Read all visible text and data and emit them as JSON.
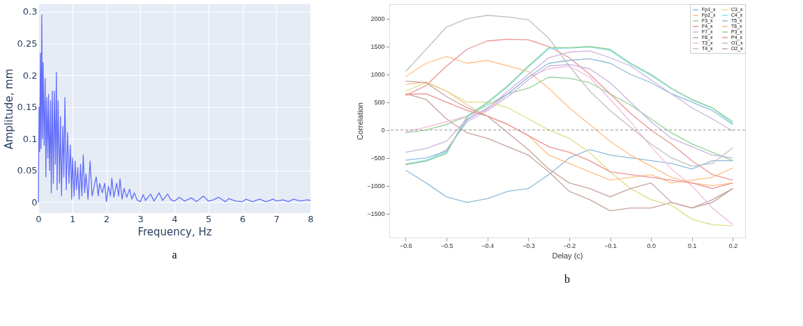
{
  "chart_data": [
    {
      "type": "line",
      "xlabel": "Frequency, Hz",
      "ylabel": "Amplitude, mm",
      "annotations": [
        "a"
      ],
      "grid": true,
      "xlim": [
        0,
        8
      ],
      "ylim": [
        -0.017,
        0.312
      ],
      "xticks": [
        0,
        1,
        2,
        3,
        4,
        5,
        6,
        7,
        8
      ],
      "yticks": [
        0,
        0.05,
        0.1,
        0.15,
        0.2,
        0.25,
        0.3
      ],
      "series": [
        {
          "color": "#636efa",
          "x": [
            0,
            0.02,
            0.04,
            0.06,
            0.08,
            0.1,
            0.12,
            0.14,
            0.17,
            0.2,
            0.22,
            0.25,
            0.28,
            0.3,
            0.33,
            0.36,
            0.38,
            0.41,
            0.44,
            0.47,
            0.5,
            0.53,
            0.55,
            0.58,
            0.62,
            0.65,
            0.68,
            0.72,
            0.75,
            0.78,
            0.82,
            0.86,
            0.9,
            0.94,
            0.98,
            1.0,
            1.05,
            1.08,
            1.12,
            1.16,
            1.2,
            1.24,
            1.28,
            1.32,
            1.36,
            1.4,
            1.46,
            1.52,
            1.58,
            1.62,
            1.7,
            1.76,
            1.8,
            1.88,
            1.95,
            2.0,
            2.06,
            2.12,
            2.16,
            2.22,
            2.3,
            2.36,
            2.4,
            2.46,
            2.52,
            2.6,
            2.68,
            2.75,
            2.82,
            2.9,
            3.0,
            3.08,
            3.15,
            3.3,
            3.4,
            3.55,
            3.65,
            3.8,
            3.9,
            4.0,
            4.15,
            4.3,
            4.5,
            4.65,
            4.85,
            5.0,
            5.15,
            5.3,
            5.5,
            5.6,
            5.8,
            6.0,
            6.1,
            6.3,
            6.5,
            6.7,
            6.9,
            7.0,
            7.2,
            7.35,
            7.5,
            7.7,
            7.9,
            8.0
          ],
          "values": [
            0,
            0.15,
            0.08,
            0.235,
            0.085,
            0.295,
            0.1,
            0.22,
            0.09,
            0.195,
            0.04,
            0.165,
            0.07,
            0.17,
            0.05,
            0.16,
            0.015,
            0.175,
            0.03,
            0.175,
            0.06,
            0.205,
            0.02,
            0.16,
            0.03,
            0.135,
            0.01,
            0.12,
            0.04,
            0.165,
            0.02,
            0.11,
            0.03,
            0.09,
            0.005,
            0.07,
            0.01,
            0.065,
            0.02,
            0.055,
            0.005,
            0.06,
            0.01,
            0.075,
            0.015,
            0.045,
            0.005,
            0.065,
            0.01,
            0.02,
            0.04,
            0.01,
            0.03,
            0.015,
            0.03,
            0.001,
            0.025,
            0.01,
            0.038,
            0.008,
            0.03,
            0.01,
            0.037,
            0.005,
            0.022,
            0.008,
            0.021,
            0.005,
            0.015,
            0.004,
            0.001,
            0.012,
            0.003,
            0.013,
            0.002,
            0.015,
            0.003,
            0.013,
            0.004,
            0.002,
            0.008,
            0.002,
            0.007,
            0.001,
            0.01,
            0.002,
            0.004,
            0.008,
            0.001,
            0.006,
            0.002,
            0.001,
            0.005,
            0.001,
            0.005,
            0.001,
            0.005,
            0.002,
            0.004,
            0.001,
            0.005,
            0.002,
            0.004,
            0.003
          ]
        }
      ]
    },
    {
      "type": "line",
      "xlabel": "Delay (c)",
      "ylabel": "Correlation",
      "annotations": [
        "b"
      ],
      "legend": "top right",
      "xlim": [
        -0.64,
        0.23
      ],
      "ylim": [
        -1930,
        2260
      ],
      "xticks": [
        {
          "value": -0.6,
          "label": "−0.6"
        },
        {
          "value": -0.5,
          "label": "−0.5"
        },
        {
          "value": -0.4,
          "label": "−0.4"
        },
        {
          "value": -0.3,
          "label": "−0.3"
        },
        {
          "value": -0.2,
          "label": "−0.2"
        },
        {
          "value": -0.1,
          "label": "−0.1"
        },
        {
          "value": 0,
          "label": "0.0"
        },
        0.1,
        0.2
      ],
      "yticks": [
        {
          "value": -1500,
          "label": "−1500"
        },
        {
          "value": -1000,
          "label": "−1000"
        },
        {
          "value": -500,
          "label": "−500"
        },
        0,
        500,
        1000,
        1500,
        2000
      ],
      "ref_lines": [
        {
          "axis": "y",
          "value": 0,
          "color": "#777777",
          "line_style": "dashed"
        }
      ],
      "x": [
        -0.6,
        -0.55,
        -0.5,
        -0.45,
        -0.4,
        -0.35,
        -0.3,
        -0.25,
        -0.2,
        -0.15,
        -0.1,
        -0.05,
        0,
        0.05,
        0.1,
        0.15,
        0.2
      ],
      "series": [
        {
          "name": "Fp1_x",
          "color": "#8fbbd9",
          "values": [
            -720,
            -950,
            -1200,
            -1300,
            -1230,
            -1100,
            -1050,
            -800,
            -500,
            -350,
            -450,
            -500,
            -550,
            -600,
            -700,
            -550,
            -550
          ]
        },
        {
          "name": "Fp2_x",
          "color": "#ffbf86",
          "values": [
            960,
            1200,
            1320,
            1200,
            1250,
            1150,
            1050,
            750,
            400,
            100,
            -200,
            -450,
            -650,
            -850,
            -950,
            -1000,
            -950
          ]
        },
        {
          "name": "F3_x",
          "color": "#94d094",
          "values": [
            -50,
            0,
            100,
            250,
            450,
            650,
            750,
            950,
            930,
            850,
            650,
            450,
            200,
            -50,
            -250,
            -400,
            -550
          ]
        },
        {
          "name": "F4_x",
          "color": "#eb9393",
          "values": [
            620,
            800,
            1150,
            1450,
            1600,
            1630,
            1620,
            1500,
            1300,
            1000,
            650,
            300,
            0,
            -250,
            -550,
            -800,
            -900
          ]
        },
        {
          "name": "F7_x",
          "color": "#c9b3de",
          "values": [
            -620,
            -560,
            -350,
            150,
            350,
            600,
            900,
            1150,
            1180,
            1100,
            850,
            500,
            150,
            -150,
            -300,
            -450,
            -500
          ]
        },
        {
          "name": "F8_x",
          "color": "#c5a39d",
          "values": [
            650,
            550,
            200,
            -50,
            -150,
            -300,
            -450,
            -750,
            -1100,
            -1250,
            -1450,
            -1400,
            -1400,
            -1300,
            -1400,
            -1250,
            -1050
          ]
        },
        {
          "name": "T3_x",
          "color": "#f1bbe1",
          "values": [
            -30,
            50,
            150,
            250,
            350,
            650,
            950,
            1100,
            1150,
            950,
            550,
            150,
            -300,
            -700,
            -1000,
            -1400,
            -1700
          ]
        },
        {
          "name": "T4_x",
          "color": "#bfbfbf",
          "values": [
            1050,
            1450,
            1850,
            2000,
            2060,
            2030,
            1980,
            1650,
            1150,
            700,
            350,
            50,
            -250,
            -500,
            -650,
            -600,
            -320
          ]
        },
        {
          "name": "C3_x",
          "color": "#dede8a",
          "values": [
            700,
            850,
            700,
            500,
            500,
            400,
            200,
            0,
            -150,
            -400,
            -750,
            -1050,
            -1250,
            -1350,
            -1600,
            -1700,
            -1720
          ]
        },
        {
          "name": "C4_x",
          "color": "#8be4ee",
          "values": [
            -610,
            -540,
            -400,
            230,
            480,
            780,
            1130,
            1460,
            1470,
            1490,
            1430,
            1180,
            980,
            740,
            540,
            390,
            120
          ]
        },
        {
          "name": "T5_x",
          "color": "#8fbbd9",
          "values": [
            -540,
            -500,
            -380,
            180,
            400,
            650,
            950,
            1200,
            1250,
            1280,
            1200,
            1000,
            850,
            650,
            500,
            350,
            100
          ]
        },
        {
          "name": "T6_x",
          "color": "#ffbf86",
          "values": [
            820,
            860,
            700,
            450,
            250,
            100,
            -100,
            -450,
            -600,
            -750,
            -900,
            -850,
            -800,
            -950,
            -900,
            -850,
            -680
          ]
        },
        {
          "name": "P3_x",
          "color": "#94d094",
          "values": [
            -620,
            -560,
            -420,
            250,
            500,
            800,
            1150,
            1480,
            1480,
            1500,
            1450,
            1200,
            1000,
            750,
            550,
            400,
            150
          ]
        },
        {
          "name": "P4_x",
          "color": "#eb9393",
          "values": [
            640,
            650,
            500,
            350,
            250,
            100,
            -100,
            -300,
            -400,
            -550,
            -750,
            -800,
            -850,
            -900,
            -950,
            -1050,
            -950
          ]
        },
        {
          "name": "O1_x",
          "color": "#c9b3de",
          "values": [
            -400,
            -330,
            -200,
            200,
            380,
            700,
            1000,
            1300,
            1400,
            1420,
            1300,
            1150,
            900,
            650,
            400,
            200,
            -20
          ]
        },
        {
          "name": "O2_x",
          "color": "#c5a39d",
          "values": [
            880,
            850,
            600,
            400,
            250,
            -50,
            -350,
            -700,
            -950,
            -1050,
            -1200,
            -1050,
            -950,
            -1300,
            -1400,
            -1300,
            -1050
          ]
        }
      ]
    }
  ]
}
